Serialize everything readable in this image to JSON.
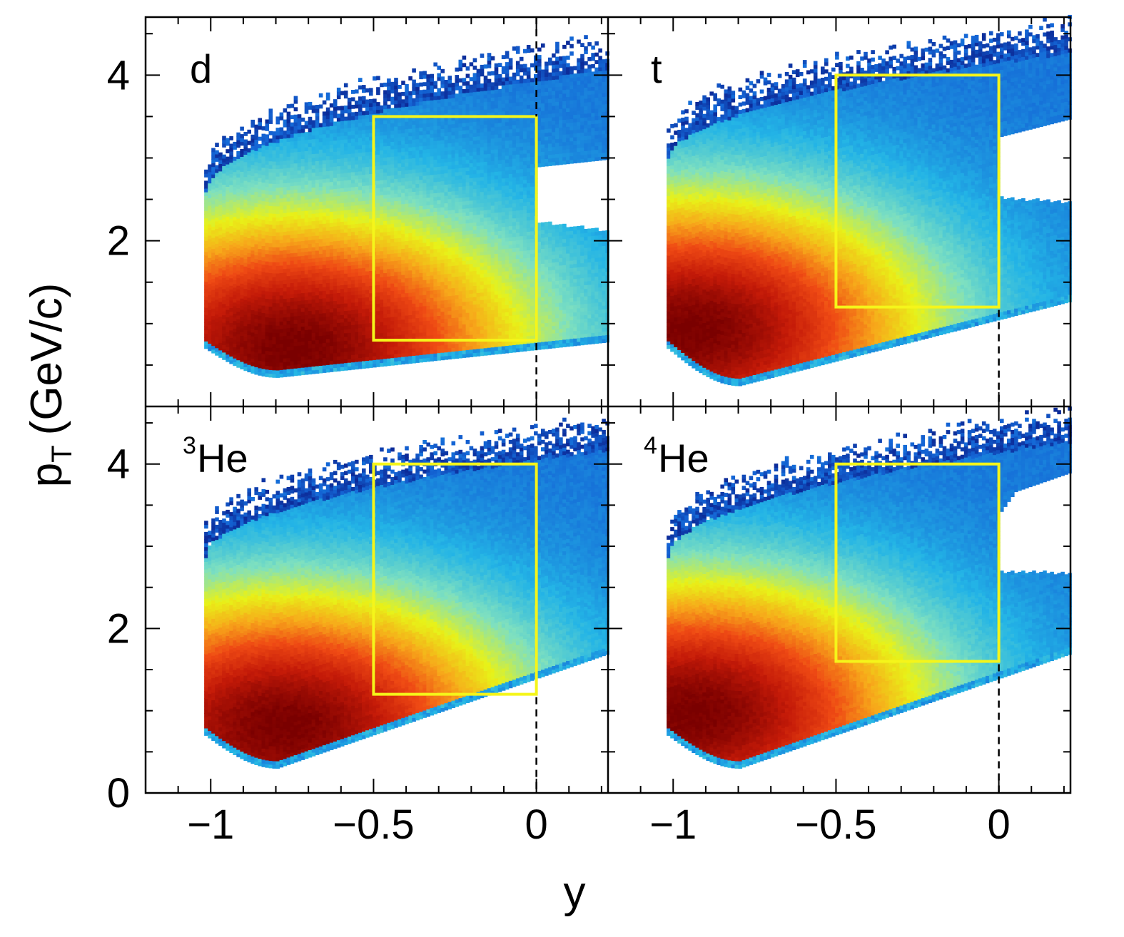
{
  "chart_data": {
    "type": "heatmap",
    "xlabel": "y",
    "ylabel_main": "p",
    "ylabel_sub": "T",
    "ylabel_unit": "(GeV/c)",
    "xlim": [
      -1.2,
      0.22
    ],
    "ylim": [
      0,
      4.7
    ],
    "x_ticks": [
      {
        "value": -1,
        "label": "−1"
      },
      {
        "value": -0.5,
        "label": "−0.5"
      },
      {
        "value": 0,
        "label": "0"
      }
    ],
    "y_ticks": [
      {
        "value": 0,
        "label": "0"
      },
      {
        "value": 2,
        "label": "2"
      },
      {
        "value": 4,
        "label": "4"
      }
    ],
    "box_color": "#f5f51a",
    "colormap": [
      "#0a1f8c",
      "#1466d6",
      "#23b4e6",
      "#7ee0c0",
      "#e8f218",
      "#f7a81a",
      "#ef4a14",
      "#c41a08",
      "#7a0000"
    ],
    "panels": [
      {
        "label": "d",
        "sup": "",
        "box": {
          "x0": -0.5,
          "x1": 0,
          "y0": 0.8,
          "y1": 3.5
        },
        "region": {
          "left_x": -1.02,
          "x_max": 0.22,
          "top_at_left": 3.0,
          "top_at_right": 4.5,
          "low_left": 0.35,
          "low_right": 0.75,
          "peak_x": -0.75,
          "peak_y": 0.7,
          "notch": true
        }
      },
      {
        "label": "t",
        "sup": "",
        "box": {
          "x0": -0.5,
          "x1": 0,
          "y0": 1.2,
          "y1": 4.0
        },
        "region": {
          "left_x": -1.02,
          "x_max": 0.22,
          "top_at_left": 3.4,
          "top_at_right": 4.7,
          "low_left": 0.25,
          "low_right": 1.2,
          "peak_x": -0.95,
          "peak_y": 0.9,
          "notch": true
        }
      },
      {
        "label": "He",
        "sup": "3",
        "box": {
          "x0": -0.5,
          "x1": 0,
          "y0": 1.2,
          "y1": 4.0
        },
        "region": {
          "left_x": -1.02,
          "x_max": 0.22,
          "top_at_left": 3.3,
          "top_at_right": 4.6,
          "low_left": 0.3,
          "low_right": 1.6,
          "peak_x": -0.78,
          "peak_y": 0.8,
          "notch": false
        }
      },
      {
        "label": "He",
        "sup": "4",
        "box": {
          "x0": -0.5,
          "x1": 0,
          "y0": 1.6,
          "y1": 4.0
        },
        "region": {
          "left_x": -1.02,
          "x_max": 0.22,
          "top_at_left": 3.3,
          "top_at_right": 4.7,
          "low_left": 0.3,
          "low_right": 1.6,
          "peak_x": -0.95,
          "peak_y": 0.95,
          "notch": true
        }
      }
    ]
  }
}
